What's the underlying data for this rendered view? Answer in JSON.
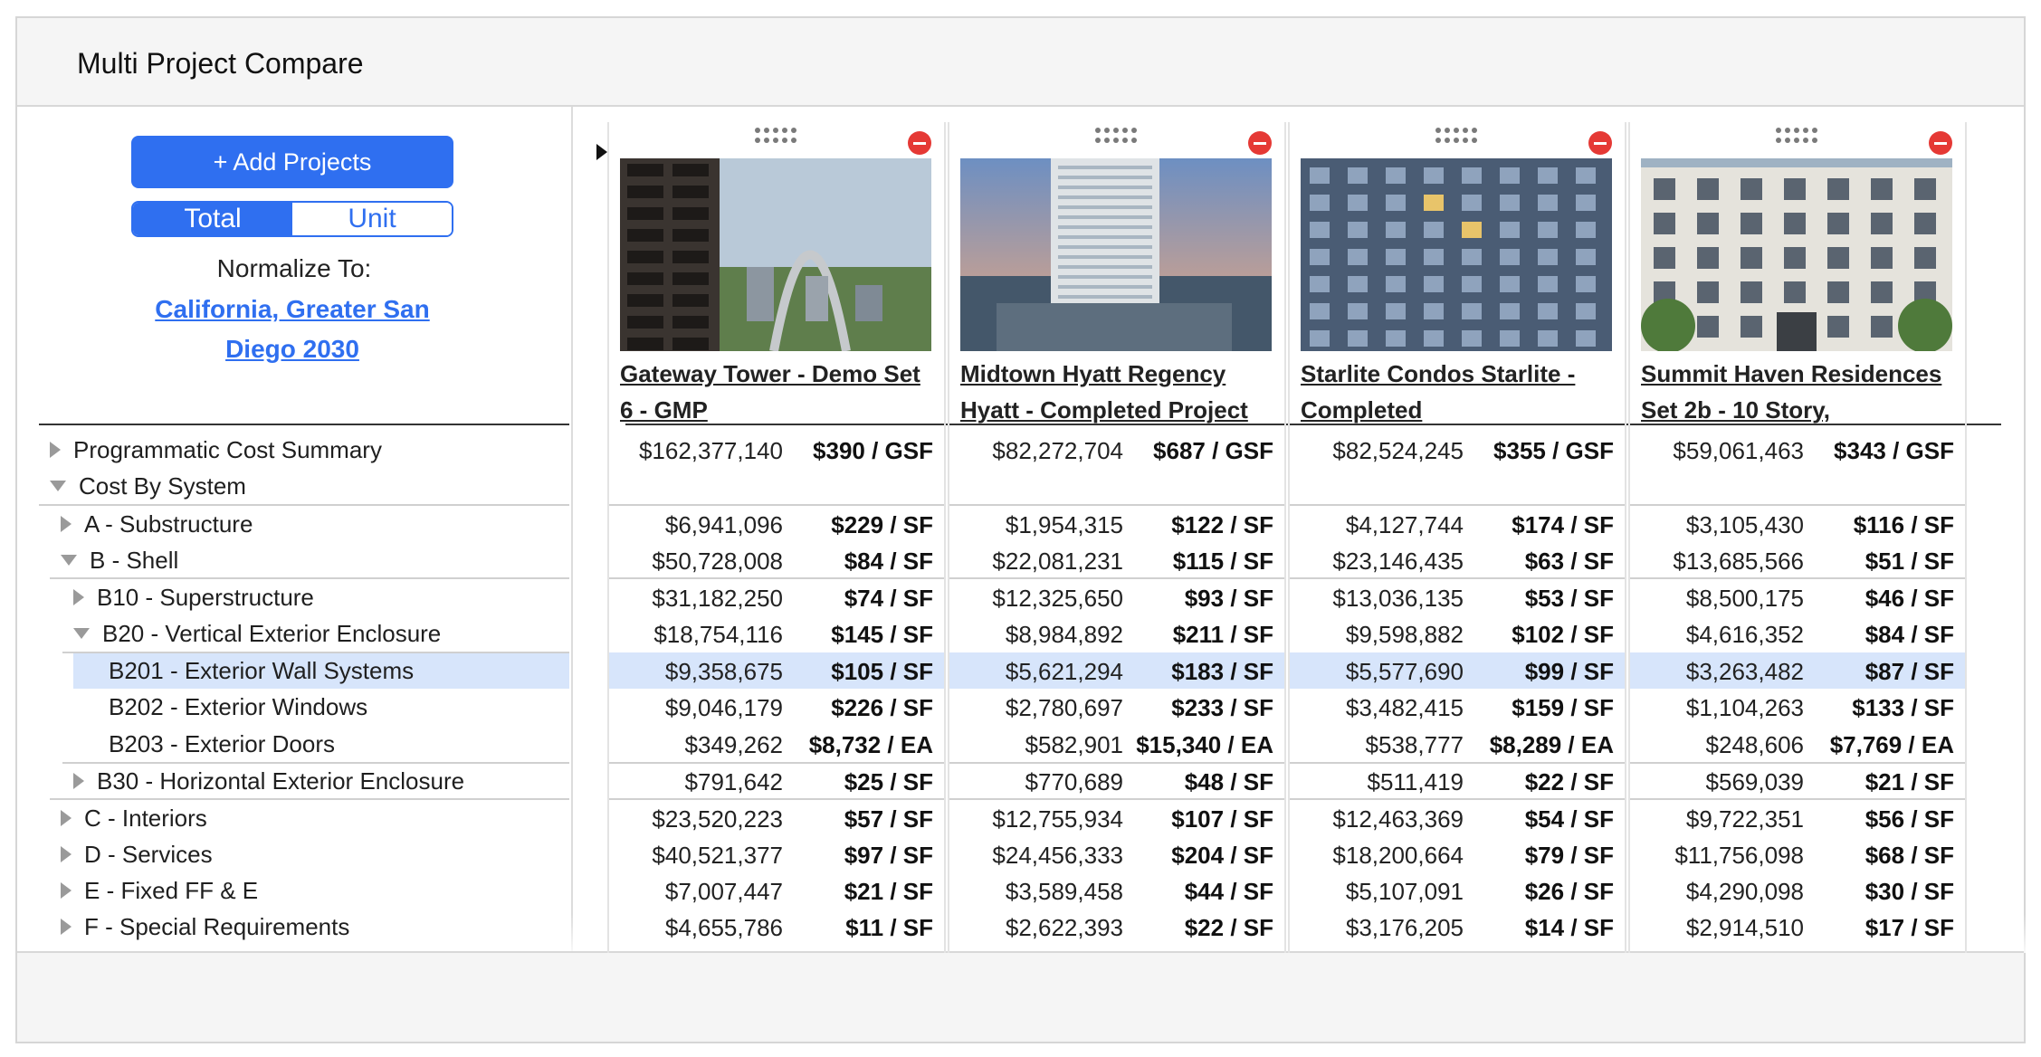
{
  "app": {
    "title": "Multi Project Compare"
  },
  "left_panel": {
    "add_button": "+ Add Projects",
    "toggle": {
      "total": "Total",
      "unit": "Unit",
      "selected": "Total"
    },
    "normalize_label": "Normalize To:",
    "normalize_location": "California, Greater San Diego 2030"
  },
  "tree": [
    {
      "label": "Programmatic Cost Summary",
      "state": "collapsed"
    },
    {
      "label": "Cost By System",
      "state": "expanded"
    },
    {
      "label": "A - Substructure",
      "state": "collapsed"
    },
    {
      "label": "B - Shell",
      "state": "expanded"
    },
    {
      "label": "B10 - Superstructure",
      "state": "collapsed"
    },
    {
      "label": "B20 - Vertical Exterior Enclosure",
      "state": "expanded"
    },
    {
      "label": "B201 - Exterior Wall Systems",
      "state": "leaf",
      "selected": true
    },
    {
      "label": "B202 - Exterior Windows",
      "state": "leaf"
    },
    {
      "label": "B203 - Exterior Doors",
      "state": "leaf"
    },
    {
      "label": "B30 - Horizontal Exterior Enclosure",
      "state": "collapsed"
    },
    {
      "label": "C - Interiors",
      "state": "collapsed"
    },
    {
      "label": "D - Services",
      "state": "collapsed"
    },
    {
      "label": "E - Fixed FF & E",
      "state": "collapsed"
    },
    {
      "label": "F - Special Requirements",
      "state": "collapsed"
    }
  ],
  "projects": [
    {
      "name": "Gateway Tower - Demo Set 6 - GMP",
      "rows": [
        [
          "$162,377,140",
          "$390 / GSF"
        ],
        [
          "",
          ""
        ],
        [
          "$6,941,096",
          "$229 / SF"
        ],
        [
          "$50,728,008",
          "$84 / SF"
        ],
        [
          "$31,182,250",
          "$74 / SF"
        ],
        [
          "$18,754,116",
          "$145 / SF"
        ],
        [
          "$9,358,675",
          "$105 / SF"
        ],
        [
          "$9,046,179",
          "$226 / SF"
        ],
        [
          "$349,262",
          "$8,732 / EA"
        ],
        [
          "$791,642",
          "$25 / SF"
        ],
        [
          "$23,520,223",
          "$57 / SF"
        ],
        [
          "$40,521,377",
          "$97 / SF"
        ],
        [
          "$7,007,447",
          "$21 / SF"
        ],
        [
          "$4,655,786",
          "$11 / SF"
        ]
      ]
    },
    {
      "name": "Midtown Hyatt Regency Hyatt - Completed Project",
      "rows": [
        [
          "$82,272,704",
          "$687 / GSF"
        ],
        [
          "",
          ""
        ],
        [
          "$1,954,315",
          "$122 / SF"
        ],
        [
          "$22,081,231",
          "$115 / SF"
        ],
        [
          "$12,325,650",
          "$93 / SF"
        ],
        [
          "$8,984,892",
          "$211 / SF"
        ],
        [
          "$5,621,294",
          "$183 / SF"
        ],
        [
          "$2,780,697",
          "$233 / SF"
        ],
        [
          "$582,901",
          "$15,340 / EA"
        ],
        [
          "$770,689",
          "$48 / SF"
        ],
        [
          "$12,755,934",
          "$107 / SF"
        ],
        [
          "$24,456,333",
          "$204 / SF"
        ],
        [
          "$3,589,458",
          "$44 / SF"
        ],
        [
          "$2,622,393",
          "$22 / SF"
        ]
      ]
    },
    {
      "name": "Starlite Condos Starlite - Completed",
      "rows": [
        [
          "$82,524,245",
          "$355 / GSF"
        ],
        [
          "",
          ""
        ],
        [
          "$4,127,744",
          "$174 / SF"
        ],
        [
          "$23,146,435",
          "$63 / SF"
        ],
        [
          "$13,036,135",
          "$53 / SF"
        ],
        [
          "$9,598,882",
          "$102 / SF"
        ],
        [
          "$5,577,690",
          "$99 / SF"
        ],
        [
          "$3,482,415",
          "$159 / SF"
        ],
        [
          "$538,777",
          "$8,289 / EA"
        ],
        [
          "$511,419",
          "$22 / SF"
        ],
        [
          "$12,463,369",
          "$54 / SF"
        ],
        [
          "$18,200,664",
          "$79 / SF"
        ],
        [
          "$5,107,091",
          "$26 / SF"
        ],
        [
          "$3,176,205",
          "$14 / SF"
        ]
      ]
    },
    {
      "name": "Summit Haven Residences Set 2b - 10 Story,",
      "rows": [
        [
          "$59,061,463",
          "$343 / GSF"
        ],
        [
          "",
          ""
        ],
        [
          "$3,105,430",
          "$116 / SF"
        ],
        [
          "$13,685,566",
          "$51 / SF"
        ],
        [
          "$8,500,175",
          "$46 / SF"
        ],
        [
          "$4,616,352",
          "$84 / SF"
        ],
        [
          "$3,263,482",
          "$87 / SF"
        ],
        [
          "$1,104,263",
          "$133 / SF"
        ],
        [
          "$248,606",
          "$7,769 / EA"
        ],
        [
          "$569,039",
          "$21 / SF"
        ],
        [
          "$9,722,351",
          "$56 / SF"
        ],
        [
          "$11,756,098",
          "$68 / SF"
        ],
        [
          "$4,290,098",
          "$30 / SF"
        ],
        [
          "$2,914,510",
          "$17 / SF"
        ]
      ]
    }
  ]
}
